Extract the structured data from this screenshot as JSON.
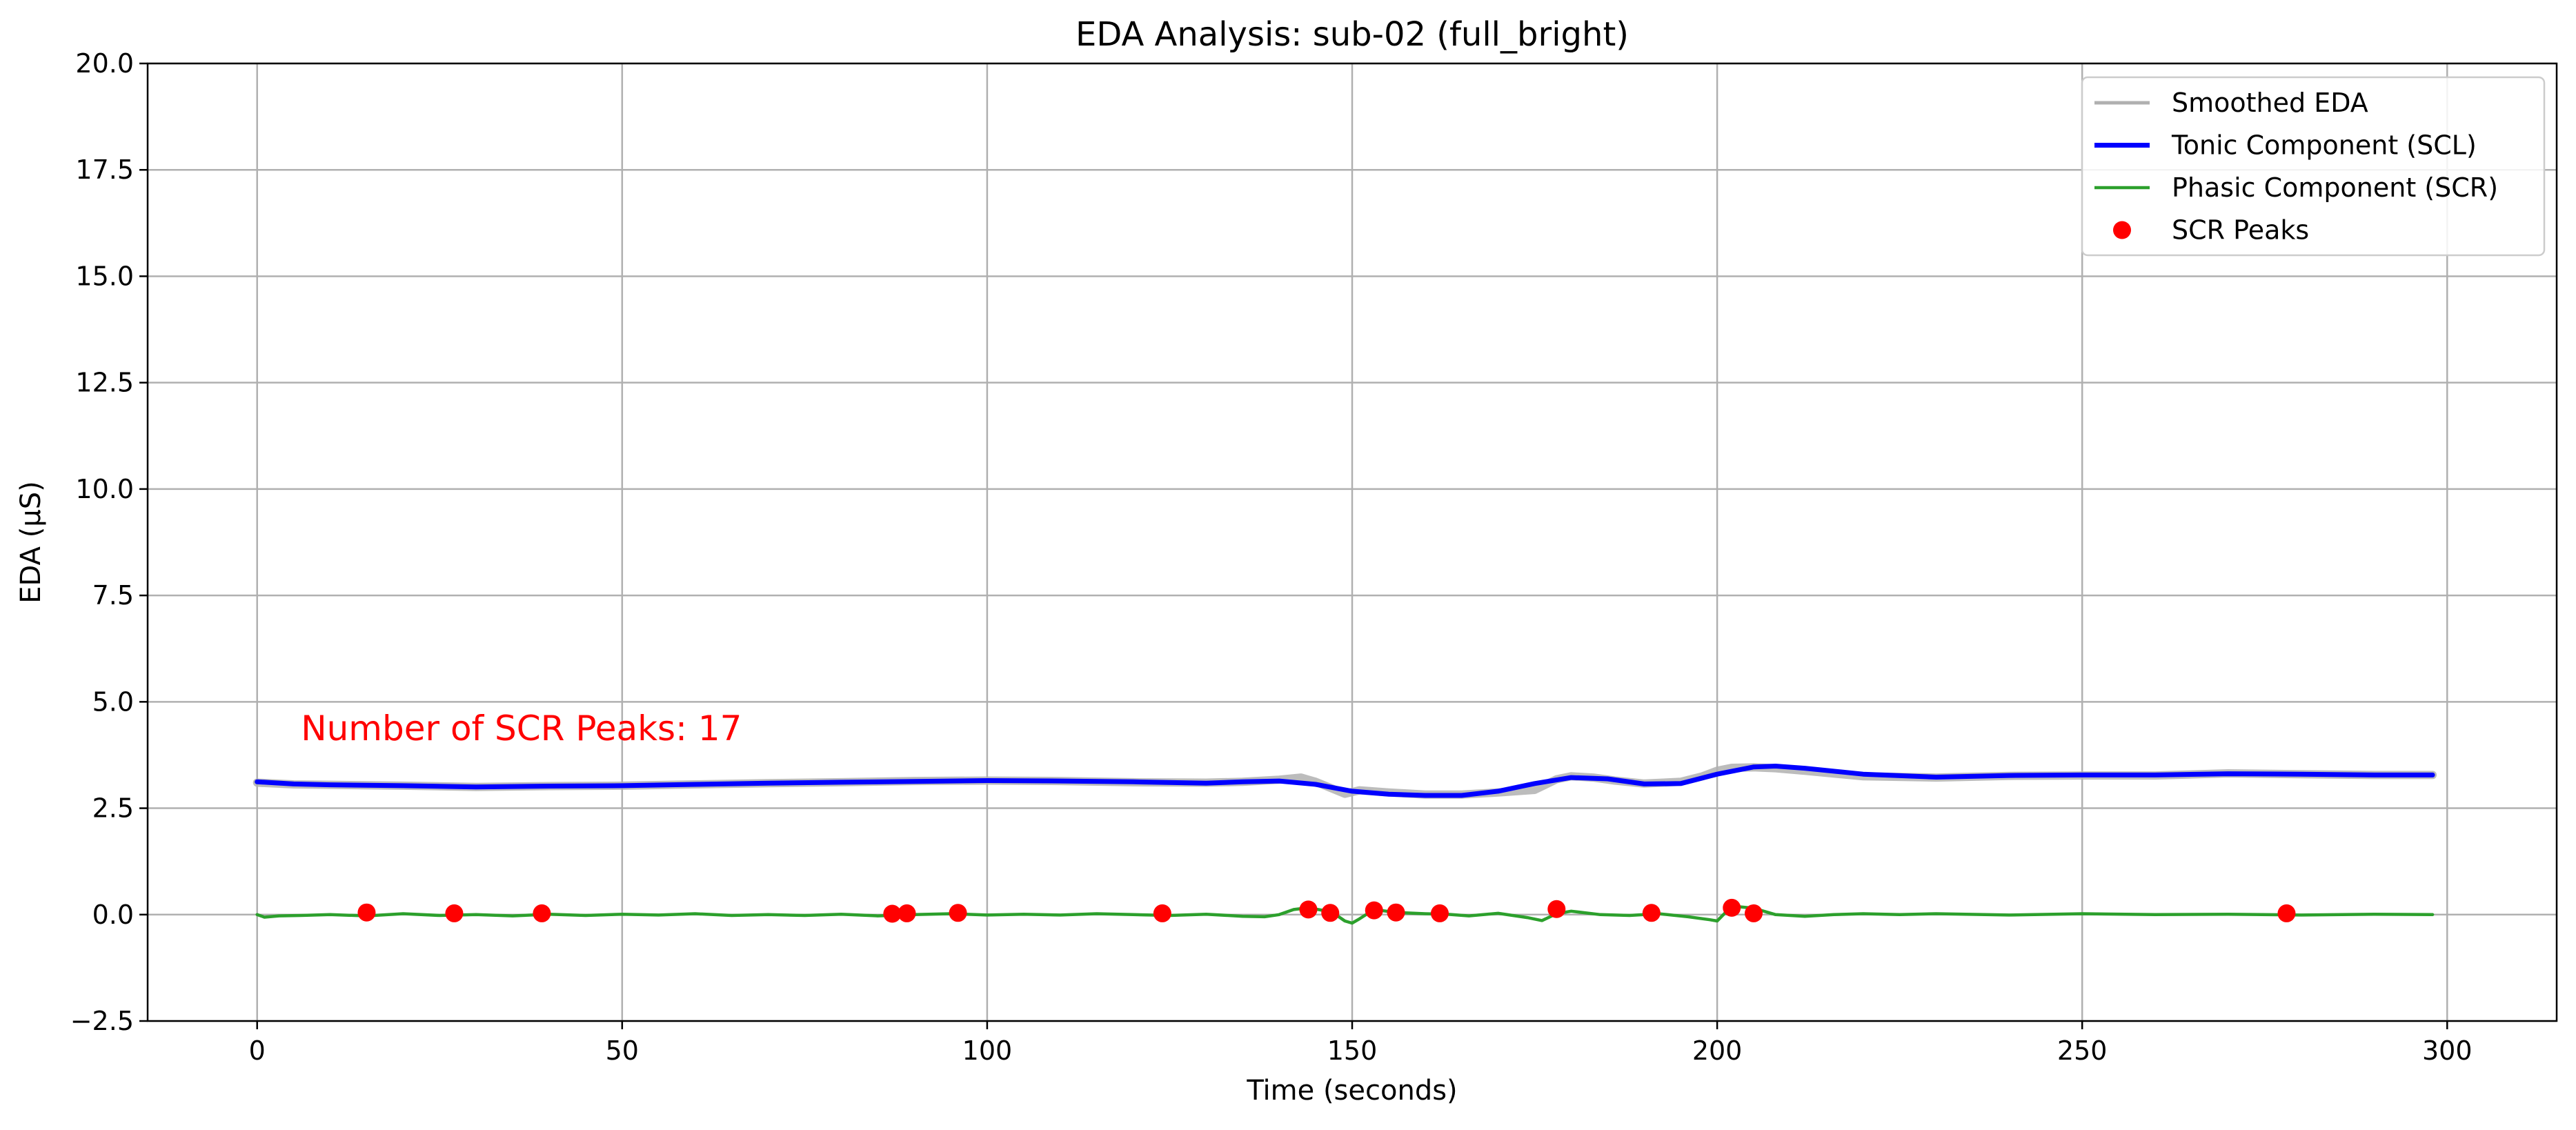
{
  "chart_data": {
    "type": "line",
    "title": "EDA Analysis: sub-02 (full_bright)",
    "xlabel": "Time (seconds)",
    "ylabel": "EDA (µS)",
    "xlim": [
      -15,
      315
    ],
    "ylim": [
      -2.5,
      20
    ],
    "xticks": [
      0,
      50,
      100,
      150,
      200,
      250,
      300
    ],
    "yticks": [
      -2.5,
      0.0,
      2.5,
      5.0,
      7.5,
      10.0,
      12.5,
      15.0,
      17.5,
      20.0
    ],
    "xtick_labels": [
      "0",
      "50",
      "100",
      "150",
      "200",
      "250",
      "300"
    ],
    "ytick_labels": [
      "−2.5",
      "0.0",
      "2.5",
      "5.0",
      "7.5",
      "10.0",
      "12.5",
      "15.0",
      "17.5",
      "20.0"
    ],
    "grid": true,
    "legend_position": "top-right",
    "annotation": {
      "text": "Number of SCR Peaks: 17",
      "x": 6,
      "y": 4.1,
      "color": "#ff0000"
    },
    "series": [
      {
        "name": "Smoothed EDA",
        "color": "#b0b0b0",
        "kind": "line",
        "x": [
          0,
          5,
          10,
          20,
          30,
          40,
          50,
          60,
          70,
          80,
          90,
          100,
          110,
          120,
          130,
          135,
          140,
          143,
          145,
          147,
          149,
          151,
          155,
          160,
          165,
          170,
          175,
          178,
          180,
          183,
          186,
          190,
          195,
          198,
          200,
          202,
          205,
          208,
          212,
          220,
          230,
          240,
          250,
          260,
          270,
          280,
          290,
          298
        ],
        "y": [
          3.1,
          3.06,
          3.05,
          3.03,
          3.0,
          3.02,
          3.03,
          3.06,
          3.09,
          3.11,
          3.14,
          3.15,
          3.14,
          3.11,
          3.1,
          3.12,
          3.17,
          3.22,
          3.12,
          2.98,
          2.84,
          2.92,
          2.87,
          2.82,
          2.82,
          2.87,
          2.93,
          3.18,
          3.25,
          3.22,
          3.15,
          3.08,
          3.12,
          3.25,
          3.38,
          3.45,
          3.46,
          3.44,
          3.38,
          3.25,
          3.22,
          3.26,
          3.27,
          3.27,
          3.32,
          3.3,
          3.28,
          3.28
        ]
      },
      {
        "name": "Tonic Component (SCL)",
        "color": "#0000ff",
        "kind": "line",
        "x": [
          0,
          5,
          10,
          20,
          30,
          40,
          50,
          60,
          70,
          80,
          90,
          100,
          110,
          120,
          130,
          135,
          140,
          145,
          150,
          155,
          160,
          165,
          170,
          175,
          180,
          185,
          190,
          195,
          200,
          205,
          208,
          212,
          220,
          230,
          240,
          250,
          260,
          270,
          280,
          290,
          298
        ],
        "y": [
          3.12,
          3.07,
          3.05,
          3.03,
          3.0,
          3.02,
          3.03,
          3.06,
          3.09,
          3.11,
          3.13,
          3.15,
          3.14,
          3.12,
          3.09,
          3.12,
          3.14,
          3.06,
          2.9,
          2.83,
          2.8,
          2.8,
          2.9,
          3.08,
          3.22,
          3.19,
          3.07,
          3.08,
          3.3,
          3.47,
          3.49,
          3.44,
          3.3,
          3.23,
          3.27,
          3.28,
          3.28,
          3.31,
          3.3,
          3.28,
          3.28
        ]
      },
      {
        "name": "Phasic Component (SCR)",
        "color": "#2ca02c",
        "kind": "line",
        "x": [
          0,
          1,
          3,
          6,
          10,
          15,
          20,
          25,
          30,
          35,
          40,
          45,
          50,
          55,
          60,
          65,
          70,
          75,
          80,
          85,
          90,
          95,
          100,
          105,
          110,
          115,
          120,
          125,
          130,
          135,
          138,
          140,
          142,
          144,
          146,
          148,
          149,
          150,
          151,
          153,
          156,
          160,
          163,
          166,
          170,
          174,
          176,
          178,
          180,
          184,
          188,
          192,
          196,
          199,
          200,
          202,
          205,
          208,
          212,
          216,
          220,
          225,
          230,
          240,
          250,
          260,
          270,
          280,
          290,
          298
        ],
        "y": [
          0.0,
          -0.06,
          -0.03,
          -0.02,
          0.0,
          -0.03,
          0.02,
          -0.02,
          0.0,
          -0.03,
          0.01,
          -0.02,
          0.01,
          -0.01,
          0.02,
          -0.02,
          0.0,
          -0.02,
          0.01,
          -0.03,
          0.0,
          0.02,
          -0.01,
          0.01,
          -0.01,
          0.02,
          0.0,
          -0.02,
          0.01,
          -0.04,
          -0.05,
          0.0,
          0.12,
          0.16,
          0.1,
          -0.03,
          -0.15,
          -0.2,
          -0.1,
          0.12,
          0.05,
          0.02,
          0.01,
          -0.03,
          0.03,
          -0.07,
          -0.14,
          0.02,
          0.08,
          0.0,
          -0.02,
          0.02,
          -0.05,
          -0.12,
          -0.15,
          0.2,
          0.15,
          0.0,
          -0.04,
          0.0,
          0.02,
          0.0,
          0.02,
          -0.01,
          0.02,
          0.0,
          0.01,
          -0.01,
          0.01,
          0.0
        ]
      },
      {
        "name": "SCR Peaks",
        "color": "#ff0000",
        "kind": "scatter",
        "x": [
          15,
          27,
          39,
          87,
          89,
          96,
          124,
          144,
          147,
          153,
          156,
          162,
          178,
          191,
          202,
          205,
          278
        ],
        "y": [
          0.05,
          0.03,
          0.03,
          0.02,
          0.03,
          0.04,
          0.03,
          0.12,
          0.04,
          0.1,
          0.05,
          0.03,
          0.13,
          0.04,
          0.16,
          0.03,
          0.03
        ]
      }
    ]
  }
}
